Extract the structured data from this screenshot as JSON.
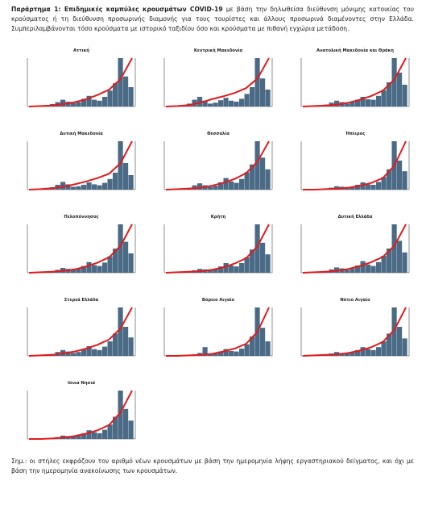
{
  "caption": {
    "label": "Παράρτημα 1: Επιδημικές καμπύλες κρουσμάτων COVID-19",
    "text": "με βάση την δηλωθείσα διεύθυνση μόνιμης κατοικίας του κρούσματος ή τη διεύθυνση προσωρινής διαμονής για τους τουρίστες και άλλους προσωρινά διαμένοντες στην Ελλάδα. Συμπεριλαμβάνονται τόσο κρούσματα με ιστορικό ταξιδίου όσο και κρούσματα με πιθανή εγχώρια μετάδοση."
  },
  "ylim": [
    0,
    100
  ],
  "y2lim": [
    0,
    100
  ],
  "bar_color": "#4a6a85",
  "line_color": "#e31a1c",
  "charts": [
    {
      "title": "Αττική",
      "bars": [
        1,
        1,
        2,
        3,
        5,
        9,
        14,
        10,
        7,
        9,
        16,
        22,
        14,
        12,
        20,
        33,
        48,
        100,
        62,
        40
      ],
      "line": [
        0,
        1,
        2,
        5,
        9,
        15,
        24,
        35,
        57,
        100
      ]
    },
    {
      "title": "Κεντρική Μακεδονία",
      "bars": [
        1,
        1,
        1,
        2,
        6,
        14,
        20,
        12,
        6,
        8,
        13,
        18,
        12,
        10,
        16,
        26,
        40,
        100,
        58,
        35
      ],
      "line": [
        0,
        1,
        3,
        8,
        15,
        21,
        28,
        38,
        58,
        100
      ]
    },
    {
      "title": "Ανατολική Μακεδονία και Θράκη",
      "bars": [
        1,
        1,
        1,
        2,
        4,
        8,
        12,
        9,
        6,
        9,
        14,
        20,
        15,
        14,
        22,
        34,
        50,
        100,
        70,
        45
      ],
      "line": [
        0,
        1,
        2,
        4,
        8,
        14,
        22,
        33,
        56,
        100
      ]
    },
    {
      "title": "Δυτική Μακεδονία",
      "bars": [
        1,
        1,
        2,
        3,
        5,
        10,
        16,
        11,
        6,
        7,
        10,
        15,
        11,
        9,
        14,
        22,
        35,
        100,
        55,
        30
      ],
      "line": [
        0,
        1,
        3,
        6,
        11,
        17,
        24,
        33,
        55,
        100
      ]
    },
    {
      "title": "Θεσσαλία",
      "bars": [
        1,
        1,
        1,
        2,
        4,
        9,
        13,
        9,
        6,
        8,
        15,
        24,
        17,
        14,
        22,
        36,
        52,
        100,
        66,
        42
      ],
      "line": [
        0,
        1,
        2,
        4,
        8,
        14,
        22,
        34,
        58,
        100
      ]
    },
    {
      "title": "Ήπειρος",
      "bars": [
        0,
        1,
        1,
        1,
        2,
        4,
        7,
        6,
        4,
        6,
        10,
        15,
        11,
        10,
        16,
        26,
        42,
        100,
        60,
        38
      ],
      "line": [
        0,
        0,
        1,
        2,
        4,
        8,
        14,
        24,
        50,
        100
      ]
    },
    {
      "title": "Πελοπόννησος",
      "bars": [
        1,
        1,
        1,
        2,
        3,
        6,
        10,
        8,
        6,
        9,
        14,
        22,
        16,
        14,
        21,
        34,
        50,
        100,
        64,
        40
      ],
      "line": [
        0,
        1,
        2,
        4,
        7,
        13,
        21,
        32,
        56,
        100
      ]
    },
    {
      "title": "Κρήτη",
      "bars": [
        1,
        1,
        1,
        2,
        3,
        5,
        8,
        7,
        5,
        8,
        13,
        20,
        15,
        13,
        20,
        32,
        48,
        100,
        62,
        38
      ],
      "line": [
        0,
        1,
        2,
        3,
        6,
        11,
        19,
        30,
        55,
        100
      ]
    },
    {
      "title": "Δυτική Ελλάδα",
      "bars": [
        1,
        1,
        1,
        2,
        4,
        7,
        11,
        9,
        6,
        9,
        15,
        24,
        17,
        14,
        22,
        35,
        50,
        100,
        66,
        42
      ],
      "line": [
        0,
        1,
        2,
        4,
        8,
        14,
        22,
        33,
        56,
        100
      ]
    },
    {
      "title": "Στερεά Ελλάδα",
      "bars": [
        1,
        1,
        2,
        3,
        4,
        8,
        12,
        9,
        6,
        8,
        13,
        20,
        14,
        12,
        19,
        30,
        46,
        100,
        60,
        38
      ],
      "line": [
        0,
        1,
        2,
        5,
        9,
        15,
        23,
        34,
        57,
        100
      ]
    },
    {
      "title": "Βόρειο Αιγαίο",
      "bars": [
        0,
        1,
        1,
        1,
        2,
        3,
        6,
        18,
        5,
        6,
        9,
        14,
        10,
        9,
        15,
        24,
        40,
        100,
        58,
        30
      ],
      "line": [
        0,
        0,
        1,
        2,
        4,
        9,
        15,
        25,
        50,
        100
      ]
    },
    {
      "title": "Νότιο Αιγαίο",
      "bars": [
        0,
        1,
        1,
        2,
        3,
        5,
        8,
        6,
        5,
        7,
        12,
        18,
        14,
        12,
        18,
        30,
        46,
        100,
        60,
        36
      ],
      "line": [
        0,
        1,
        2,
        3,
        6,
        11,
        18,
        29,
        54,
        100
      ]
    },
    {
      "title": "Ιόνια Νησιά",
      "bars": [
        0,
        1,
        1,
        1,
        2,
        4,
        7,
        6,
        5,
        8,
        12,
        18,
        14,
        12,
        19,
        30,
        46,
        100,
        62,
        38
      ],
      "line": [
        0,
        0,
        1,
        3,
        6,
        11,
        18,
        29,
        55,
        100
      ]
    }
  ],
  "note": "Σημ.: οι στήλες εκφράζουν τον αριθμό νέων κρουσμάτων με βάση την ημερομηνία λήψης εργαστηριακού δείγματος, και όχι με βάση την ημερομηνία ανακοίνωσης των κρουσμάτων."
}
